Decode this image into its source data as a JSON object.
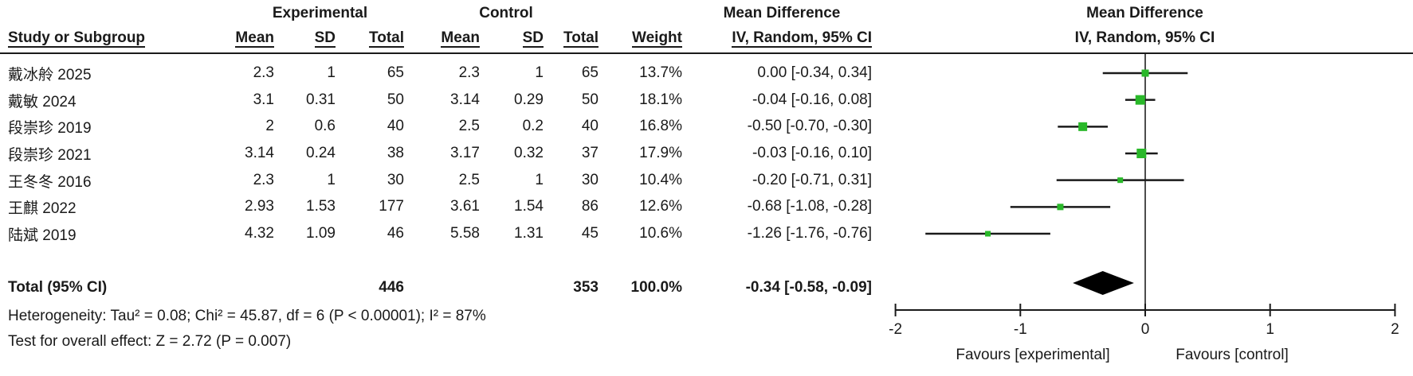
{
  "header": {
    "study_col": "Study or Subgroup",
    "exp_group": "Experimental",
    "ctrl_group": "Control",
    "md_group": "Mean Difference",
    "plot_md_group": "Mean Difference",
    "mean": "Mean",
    "sd": "SD",
    "total": "Total",
    "mean2": "Mean",
    "sd2": "SD",
    "total2": "Total",
    "weight": "Weight",
    "ci_method": "IV, Random, 95% CI",
    "plot_ci_method": "IV, Random, 95% CI"
  },
  "studies": [
    {
      "name": "戴冰舲 2025",
      "exp_mean": "2.3",
      "exp_sd": "1",
      "exp_total": "65",
      "ctrl_mean": "2.3",
      "ctrl_sd": "1",
      "ctrl_total": "65",
      "weight": "13.7%",
      "md_ci": "0.00 [-0.34, 0.34]"
    },
    {
      "name": "戴敏 2024",
      "exp_mean": "3.1",
      "exp_sd": "0.31",
      "exp_total": "50",
      "ctrl_mean": "3.14",
      "ctrl_sd": "0.29",
      "ctrl_total": "50",
      "weight": "18.1%",
      "md_ci": "-0.04 [-0.16, 0.08]"
    },
    {
      "name": "段崇珍 2019",
      "exp_mean": "2",
      "exp_sd": "0.6",
      "exp_total": "40",
      "ctrl_mean": "2.5",
      "ctrl_sd": "0.2",
      "ctrl_total": "40",
      "weight": "16.8%",
      "md_ci": "-0.50 [-0.70, -0.30]"
    },
    {
      "name": "段崇珍 2021",
      "exp_mean": "3.14",
      "exp_sd": "0.24",
      "exp_total": "38",
      "ctrl_mean": "3.17",
      "ctrl_sd": "0.32",
      "ctrl_total": "37",
      "weight": "17.9%",
      "md_ci": "-0.03 [-0.16, 0.10]"
    },
    {
      "name": "王冬冬 2016",
      "exp_mean": "2.3",
      "exp_sd": "1",
      "exp_total": "30",
      "ctrl_mean": "2.5",
      "ctrl_sd": "1",
      "ctrl_total": "30",
      "weight": "10.4%",
      "md_ci": "-0.20 [-0.71, 0.31]"
    },
    {
      "name": "王麒 2022",
      "exp_mean": "2.93",
      "exp_sd": "1.53",
      "exp_total": "177",
      "ctrl_mean": "3.61",
      "ctrl_sd": "1.54",
      "ctrl_total": "86",
      "weight": "12.6%",
      "md_ci": "-0.68 [-1.08, -0.28]"
    },
    {
      "name": "陆斌 2019",
      "exp_mean": "4.32",
      "exp_sd": "1.09",
      "exp_total": "46",
      "ctrl_mean": "5.58",
      "ctrl_sd": "1.31",
      "ctrl_total": "45",
      "weight": "10.6%",
      "md_ci": "-1.26 [-1.76, -0.76]"
    }
  ],
  "total_row": {
    "label": "Total (95% CI)",
    "exp_total": "446",
    "ctrl_total": "353",
    "weight": "100.0%",
    "md_ci": "-0.34 [-0.58, -0.09]"
  },
  "footnotes": {
    "heterogeneity": "Heterogeneity: Tau² = 0.08; Chi² = 45.87, df = 6 (P < 0.00001); I² = 87%",
    "overall_effect": "Test for overall effect: Z = 2.72 (P = 0.007)"
  },
  "chart_data": {
    "type": "forest",
    "effect_measure": "Mean Difference, IV, Random, 95% CI",
    "x_range": [
      -2,
      2
    ],
    "x_ticks": [
      -2,
      -1,
      0,
      1,
      2
    ],
    "vertical_line_at": 0,
    "favours_left": "Favours [experimental]",
    "favours_right": "Favours [control]",
    "marker_color": "#29b829",
    "line_color": "#1a1a1a",
    "zero_line_color": "#4d4d4d",
    "points": [
      {
        "study": "戴冰舲 2025",
        "md": 0.0,
        "ci_low": -0.34,
        "ci_high": 0.34,
        "weight_pct": 13.7
      },
      {
        "study": "戴敏 2024",
        "md": -0.04,
        "ci_low": -0.16,
        "ci_high": 0.08,
        "weight_pct": 18.1
      },
      {
        "study": "段崇珍 2019",
        "md": -0.5,
        "ci_low": -0.7,
        "ci_high": -0.3,
        "weight_pct": 16.8
      },
      {
        "study": "段崇珍 2021",
        "md": -0.03,
        "ci_low": -0.16,
        "ci_high": 0.1,
        "weight_pct": 17.9
      },
      {
        "study": "王冬冬 2016",
        "md": -0.2,
        "ci_low": -0.71,
        "ci_high": 0.31,
        "weight_pct": 10.4
      },
      {
        "study": "王麒 2022",
        "md": -0.68,
        "ci_low": -1.08,
        "ci_high": -0.28,
        "weight_pct": 12.6
      },
      {
        "study": "陆斌 2019",
        "md": -1.26,
        "ci_low": -1.76,
        "ci_high": -0.76,
        "weight_pct": 10.6
      }
    ],
    "diamond": {
      "md": -0.34,
      "ci_low": -0.58,
      "ci_high": -0.09
    }
  }
}
